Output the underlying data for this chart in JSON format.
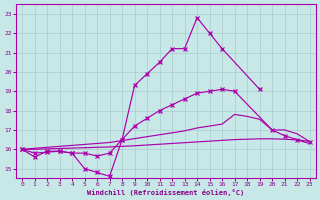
{
  "xlabel": "Windchill (Refroidissement éolien,°C)",
  "bg_color": "#c8e8e8",
  "line_color": "#aa00aa",
  "grid_color": "#aacccc",
  "text_color": "#880088",
  "ylim": [
    14.5,
    23.5
  ],
  "yticks": [
    15,
    16,
    17,
    18,
    19,
    20,
    21,
    22,
    23
  ],
  "xticks": [
    0,
    1,
    2,
    3,
    4,
    5,
    6,
    7,
    8,
    9,
    10,
    11,
    12,
    13,
    14,
    15,
    16,
    17,
    18,
    19,
    20,
    21,
    22,
    23
  ],
  "curve1_x": [
    0,
    1,
    2,
    3,
    4,
    5,
    6,
    7,
    8,
    9,
    10,
    11,
    12,
    13,
    14,
    15,
    16,
    19
  ],
  "curve1_y": [
    16.0,
    15.6,
    15.9,
    15.9,
    15.8,
    15.0,
    14.8,
    14.6,
    16.5,
    19.3,
    19.9,
    20.5,
    21.2,
    21.2,
    22.8,
    22.0,
    21.2,
    19.1
  ],
  "curve2_x": [
    0,
    1,
    2,
    3,
    4,
    5,
    6,
    7,
    8,
    9,
    10,
    11,
    12,
    13,
    14,
    15,
    16,
    17,
    20,
    21,
    22,
    23
  ],
  "curve2_y": [
    16.0,
    15.8,
    15.85,
    15.9,
    15.8,
    15.8,
    15.65,
    15.8,
    16.5,
    17.2,
    17.6,
    18.0,
    18.3,
    18.6,
    18.9,
    19.0,
    19.1,
    19.0,
    17.0,
    16.7,
    16.5,
    16.4
  ],
  "curve3_x": [
    0,
    1,
    2,
    3,
    4,
    5,
    6,
    7,
    8,
    9,
    10,
    11,
    12,
    13,
    14,
    15,
    16,
    17,
    18,
    19,
    20,
    21,
    22,
    23
  ],
  "curve3_y": [
    16.0,
    16.05,
    16.1,
    16.15,
    16.2,
    16.25,
    16.3,
    16.35,
    16.45,
    16.55,
    16.65,
    16.75,
    16.85,
    16.95,
    17.1,
    17.2,
    17.3,
    17.8,
    17.7,
    17.55,
    17.0,
    17.0,
    16.8,
    16.4
  ],
  "curve4_x": [
    0,
    1,
    2,
    3,
    4,
    5,
    6,
    7,
    8,
    9,
    10,
    11,
    12,
    13,
    14,
    15,
    16,
    17,
    18,
    19,
    20,
    21,
    22,
    23
  ],
  "curve4_y": [
    16.0,
    16.0,
    16.02,
    16.04,
    16.06,
    16.08,
    16.1,
    16.12,
    16.15,
    16.18,
    16.22,
    16.26,
    16.3,
    16.34,
    16.38,
    16.42,
    16.46,
    16.5,
    16.52,
    16.54,
    16.54,
    16.52,
    16.48,
    16.3
  ]
}
